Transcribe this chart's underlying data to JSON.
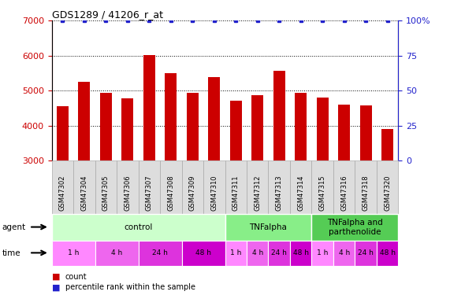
{
  "title": "GDS1289 / 41206_r_at",
  "samples": [
    "GSM47302",
    "GSM47304",
    "GSM47305",
    "GSM47306",
    "GSM47307",
    "GSM47308",
    "GSM47309",
    "GSM47310",
    "GSM47311",
    "GSM47312",
    "GSM47313",
    "GSM47314",
    "GSM47315",
    "GSM47316",
    "GSM47318",
    "GSM47320"
  ],
  "counts": [
    4550,
    5250,
    4950,
    4780,
    6020,
    5490,
    4950,
    5380,
    4720,
    4870,
    5560,
    4950,
    4800,
    4600,
    4570,
    3900
  ],
  "bar_color": "#cc0000",
  "dot_color": "#2222cc",
  "ylim_left": [
    3000,
    7000
  ],
  "ylim_right": [
    0,
    100
  ],
  "yticks_left": [
    3000,
    4000,
    5000,
    6000,
    7000
  ],
  "yticks_right": [
    0,
    25,
    50,
    75,
    100
  ],
  "agent_groups": [
    {
      "label": "control",
      "start": 0,
      "end": 8,
      "color": "#ccffcc",
      "text_color": "#000000"
    },
    {
      "label": "TNFalpha",
      "start": 8,
      "end": 12,
      "color": "#88ee88",
      "text_color": "#000000"
    },
    {
      "label": "TNFalpha and\nparthenolide",
      "start": 12,
      "end": 16,
      "color": "#55cc55",
      "text_color": "#000000"
    }
  ],
  "time_groups": [
    {
      "label": "1 h",
      "start": 0,
      "end": 2,
      "color": "#ff88ff"
    },
    {
      "label": "4 h",
      "start": 2,
      "end": 4,
      "color": "#ee66ee"
    },
    {
      "label": "24 h",
      "start": 4,
      "end": 6,
      "color": "#dd33dd"
    },
    {
      "label": "48 h",
      "start": 6,
      "end": 8,
      "color": "#cc00cc"
    },
    {
      "label": "1 h",
      "start": 8,
      "end": 9,
      "color": "#ff88ff"
    },
    {
      "label": "4 h",
      "start": 9,
      "end": 10,
      "color": "#ee66ee"
    },
    {
      "label": "24 h",
      "start": 10,
      "end": 11,
      "color": "#dd33dd"
    },
    {
      "label": "48 h",
      "start": 11,
      "end": 12,
      "color": "#cc00cc"
    },
    {
      "label": "1 h",
      "start": 12,
      "end": 13,
      "color": "#ff88ff"
    },
    {
      "label": "4 h",
      "start": 13,
      "end": 14,
      "color": "#ee66ee"
    },
    {
      "label": "24 h",
      "start": 14,
      "end": 15,
      "color": "#dd33dd"
    },
    {
      "label": "48 h",
      "start": 15,
      "end": 16,
      "color": "#cc00cc"
    }
  ],
  "legend_count_color": "#cc0000",
  "legend_pct_color": "#2222cc",
  "background_color": "#ffffff",
  "tick_label_color_left": "#cc0000",
  "tick_label_color_right": "#2222cc",
  "xtick_bg_color": "#dddddd",
  "xtick_border_color": "#aaaaaa"
}
